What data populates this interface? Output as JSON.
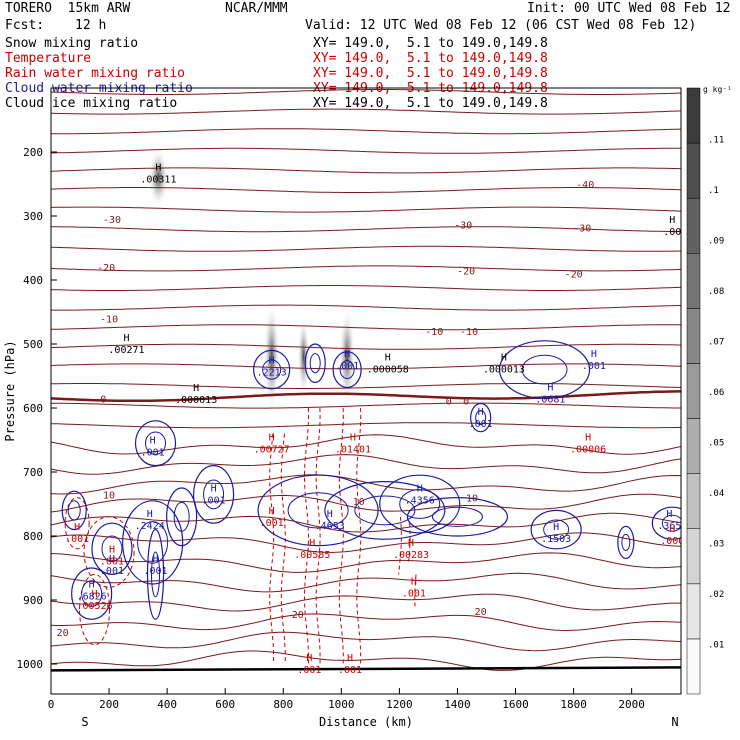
{
  "header": {
    "title_left": "TORERO  15km ARW",
    "title_center": "NCAR/MMM",
    "init": "Init: 00 UTC Wed 08 Feb 12",
    "fcst_label": "Fcst:",
    "fcst_value": "12 h",
    "valid": "Valid: 12 UTC Wed 08 Feb 12 (06 CST Wed 08 Feb 12)"
  },
  "fields": [
    {
      "name": "Snow mixing ratio",
      "color": "#000000",
      "xsec": ""
    },
    {
      "name": "Temperature",
      "color": "#cc0000",
      "xsec": "XY= 149.0,  5.1 to 149.0,149.8"
    },
    {
      "name": "Rain water mixing ratio",
      "color": "#cc0000",
      "xsec": "XY= 149.0,  5.1 to 149.0,149.8"
    },
    {
      "name": "Cloud water mixing ratio",
      "color": "#1a1aa6",
      "xsec": "XY= 149.0,  5.1 to 149.0,149.8"
    },
    {
      "name": "Cloud ice mixing ratio",
      "color": "#000000",
      "xsec": "XY= 149.0,  5.1 to 149.0,149.8"
    }
  ],
  "snow_xsec": "XY= 149.0,  5.1 to 149.0,149.8",
  "chart_data": {
    "type": "contour",
    "xlabel": "Distance (km)",
    "ylabel": "Pressure (hPa)",
    "xlim": [
      0,
      2170
    ],
    "ylim": [
      1000,
      100
    ],
    "x_ticks": [
      0,
      200,
      400,
      600,
      800,
      1000,
      1200,
      1400,
      1600,
      1800,
      2000
    ],
    "x_tick_labels": [
      "0",
      "200",
      "400",
      "600",
      "800",
      "1000",
      "1200",
      "1400",
      "1600",
      "1800",
      "2000"
    ],
    "y_ticks": [
      200,
      300,
      400,
      500,
      600,
      700,
      800,
      900,
      1000
    ],
    "y_tick_labels": [
      "200",
      "300",
      "400",
      "500",
      "600",
      "700",
      "800",
      "900",
      "1000"
    ],
    "endpoint_left": "S",
    "endpoint_right": "N",
    "colorbar": {
      "unit": "g kg⁻¹",
      "ticks": [
        ".01",
        ".02",
        ".03",
        ".04",
        ".05",
        ".06",
        ".07",
        ".08",
        ".09",
        ".1",
        ".11"
      ],
      "values": [
        0.01,
        0.02,
        0.03,
        0.04,
        0.05,
        0.06,
        0.07,
        0.08,
        0.09,
        0.1,
        0.11
      ],
      "max": 0.12
    },
    "temperature_labels": [
      {
        "text": "-40",
        "x": 1840,
        "p": 250
      },
      {
        "text": "-30",
        "x": 210,
        "p": 305
      },
      {
        "text": "-30",
        "x": 1420,
        "p": 313
      },
      {
        "text": "-30",
        "x": 1830,
        "p": 318
      },
      {
        "text": "-20",
        "x": 190,
        "p": 380
      },
      {
        "text": "-20",
        "x": 1430,
        "p": 385
      },
      {
        "text": "-20",
        "x": 1800,
        "p": 390
      },
      {
        "text": "-10",
        "x": 200,
        "p": 460
      },
      {
        "text": "-10",
        "x": 1320,
        "p": 480
      },
      {
        "text": "-10",
        "x": 1440,
        "p": 480
      },
      {
        "text": "0",
        "x": 180,
        "p": 585
      },
      {
        "text": "0",
        "x": 1370,
        "p": 588
      },
      {
        "text": "0",
        "x": 1430,
        "p": 588
      },
      {
        "text": "10",
        "x": 200,
        "p": 735
      },
      {
        "text": "10",
        "x": 1060,
        "p": 745
      },
      {
        "text": "10",
        "x": 1450,
        "p": 740
      },
      {
        "text": "20",
        "x": 850,
        "p": 922
      },
      {
        "text": "20",
        "x": 1480,
        "p": 917
      },
      {
        "text": "20",
        "x": 40,
        "p": 950
      }
    ],
    "isotherm_count": 30,
    "maxima": [
      {
        "field": "cloud_ice",
        "text": ".00311",
        "x": 370,
        "p": 238
      },
      {
        "field": "cloud_ice",
        "text": ".00271",
        "x": 260,
        "p": 505
      },
      {
        "field": "cloud_ice",
        "text": ".000013",
        "x": 500,
        "p": 583
      },
      {
        "field": "cloud_ice",
        "text": ".000058",
        "x": 1160,
        "p": 535
      },
      {
        "field": "cloud_ice",
        "text": ".000013",
        "x": 1560,
        "p": 535
      },
      {
        "field": "cloud_ice",
        "text": ".00",
        "x": 2140,
        "p": 320
      },
      {
        "field": "cloud_water",
        "text": ".2213",
        "x": 760,
        "p": 540
      },
      {
        "field": "cloud_water",
        "text": ".001",
        "x": 1020,
        "p": 530
      },
      {
        "field": "cloud_water",
        "text": ".0681",
        "x": 1720,
        "p": 582
      },
      {
        "field": "cloud_water",
        "text": ".001",
        "x": 1870,
        "p": 530
      },
      {
        "field": "cloud_water",
        "text": ".001",
        "x": 1480,
        "p": 620
      },
      {
        "field": "cloud_water",
        "text": ".001",
        "x": 350,
        "p": 665
      },
      {
        "field": "cloud_water",
        "text": ".001",
        "x": 560,
        "p": 740
      },
      {
        "field": "cloud_water",
        "text": ".2424",
        "x": 340,
        "p": 780
      },
      {
        "field": "cloud_water",
        "text": ".4653",
        "x": 960,
        "p": 780
      },
      {
        "field": "cloud_water",
        "text": ".4356",
        "x": 1270,
        "p": 740
      },
      {
        "field": "cloud_water",
        "text": ".1503",
        "x": 1740,
        "p": 800
      },
      {
        "field": "cloud_water",
        "text": ".365",
        "x": 2130,
        "p": 780
      },
      {
        "field": "cloud_water",
        "text": ".001",
        "x": 360,
        "p": 850
      },
      {
        "field": "cloud_water",
        "text": ".001",
        "x": 210,
        "p": 850
      },
      {
        "field": "cloud_water",
        "text": ".6826",
        "x": 140,
        "p": 890
      },
      {
        "field": "rain",
        "text": ".00727",
        "x": 760,
        "p": 660
      },
      {
        "field": "rain",
        "text": ".01401",
        "x": 1040,
        "p": 660
      },
      {
        "field": "rain",
        "text": ".00006",
        "x": 1850,
        "p": 660
      },
      {
        "field": "rain",
        "text": ".001",
        "x": 760,
        "p": 775
      },
      {
        "field": "rain",
        "text": ".00585",
        "x": 900,
        "p": 825
      },
      {
        "field": "rain",
        "text": ".00283",
        "x": 1240,
        "p": 825
      },
      {
        "field": "rain",
        "text": ".001",
        "x": 1250,
        "p": 885
      },
      {
        "field": "rain",
        "text": ".00526",
        "x": 150,
        "p": 905
      },
      {
        "field": "rain",
        "text": ".001",
        "x": 90,
        "p": 800
      },
      {
        "field": "rain",
        "text": ".001",
        "x": 210,
        "p": 835
      },
      {
        "field": "rain",
        "text": ".001",
        "x": 890,
        "p": 1005
      },
      {
        "field": "rain",
        "text": ".001",
        "x": 1030,
        "p": 1005
      },
      {
        "field": "rain",
        "text": ".000",
        "x": 2140,
        "p": 803
      }
    ],
    "colors": {
      "temperature": "#7a1a1a",
      "freezing": "#7a1a1a",
      "rain": "#cc0000",
      "cloud_water": "#1a1aa6",
      "cloud_ice": "#000000",
      "snow_shade": "#555555",
      "ground": "#000000"
    }
  }
}
